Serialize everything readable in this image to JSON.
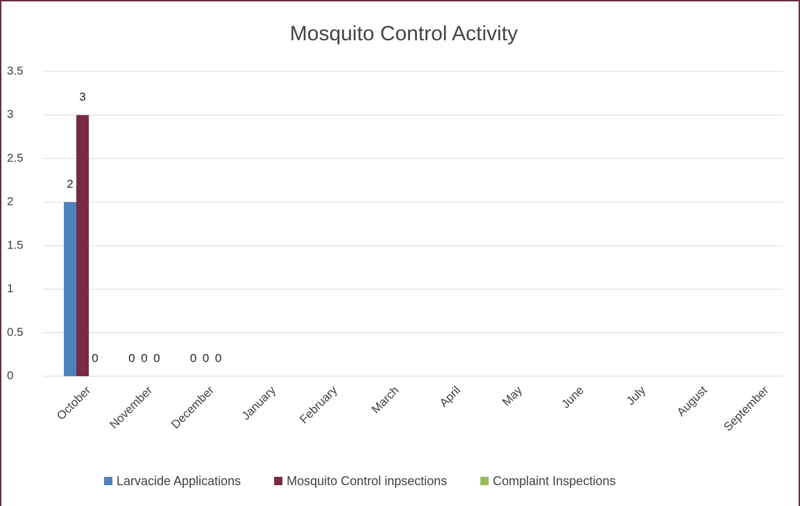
{
  "chart_data": {
    "type": "bar",
    "title": "Mosquito Control Activity",
    "categories": [
      "October",
      "November",
      "December",
      "January",
      "February",
      "March",
      "April",
      "May",
      "June",
      "July",
      "August",
      "September"
    ],
    "series": [
      {
        "name": "Larvacide Applications",
        "color": "#4f81bd",
        "values": [
          2,
          0,
          0,
          null,
          null,
          null,
          null,
          null,
          null,
          null,
          null,
          null
        ]
      },
      {
        "name": "Mosquito Control inpsections",
        "color": "#772c42",
        "values": [
          3,
          0,
          0,
          null,
          null,
          null,
          null,
          null,
          null,
          null,
          null,
          null
        ]
      },
      {
        "name": "Complaint Inspections",
        "color": "#9bbb59",
        "values": [
          0,
          0,
          0,
          null,
          null,
          null,
          null,
          null,
          null,
          null,
          null,
          null
        ]
      }
    ],
    "ylim": [
      0,
      3.5
    ],
    "yticks": [
      0,
      0.5,
      1,
      1.5,
      2,
      2.5,
      3,
      3.5
    ],
    "grid": true,
    "legend": "bottom"
  }
}
